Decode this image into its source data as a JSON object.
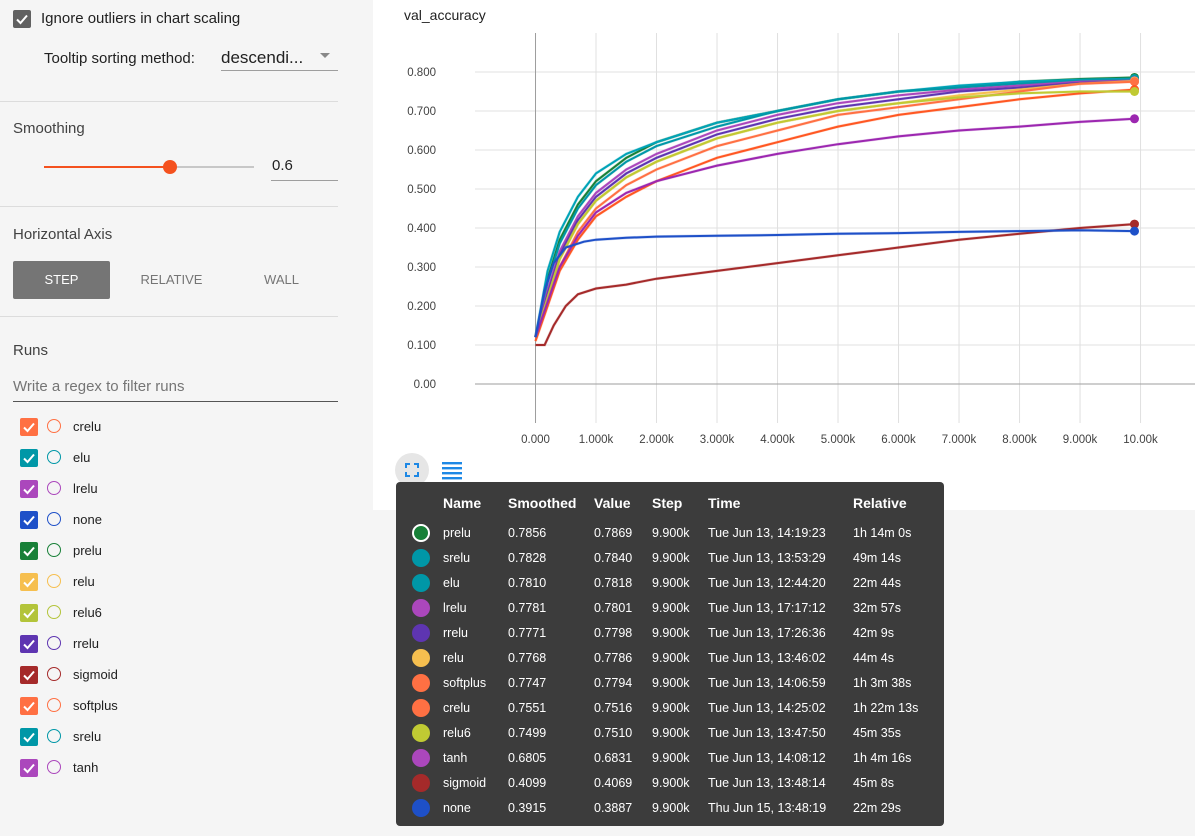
{
  "sidebar": {
    "ignore_outliers_label": "Ignore outliers in chart scaling",
    "tooltip_sort_label": "Tooltip sorting method:",
    "tooltip_sort_value": "descendi...",
    "smoothing_header": "Smoothing",
    "smoothing_value": "0.6",
    "smoothing_fraction": 0.6,
    "horizontal_axis_header": "Horizontal Axis",
    "axis_buttons": [
      "STEP",
      "RELATIVE",
      "WALL"
    ],
    "axis_selected": "STEP",
    "runs_header": "Runs",
    "runs_filter_placeholder": "Write a regex to filter runs",
    "runs": [
      {
        "name": "crelu",
        "color": "#ff7043"
      },
      {
        "name": "elu",
        "color": "#0097a7"
      },
      {
        "name": "lrelu",
        "color": "#ab47bc"
      },
      {
        "name": "none",
        "color": "#1e50c8"
      },
      {
        "name": "prelu",
        "color": "#188038"
      },
      {
        "name": "relu",
        "color": "#f6bf4f"
      },
      {
        "name": "relu6",
        "color": "#b3c43a"
      },
      {
        "name": "rrelu",
        "color": "#5e35b1"
      },
      {
        "name": "sigmoid",
        "color": "#a52a2a"
      },
      {
        "name": "softplus",
        "color": "#ff7043"
      },
      {
        "name": "srelu",
        "color": "#0097a7"
      },
      {
        "name": "tanh",
        "color": "#ab47bc"
      }
    ]
  },
  "chart_data": {
    "type": "line",
    "title": "val_accuracy",
    "xlabel": "",
    "ylabel": "",
    "xlim": [
      -1000,
      10900
    ],
    "ylim": [
      -0.1,
      0.9
    ],
    "x_ticks": [
      0,
      1000,
      2000,
      3000,
      4000,
      5000,
      6000,
      7000,
      8000,
      9000,
      10000
    ],
    "x_tick_labels": [
      "0.000",
      "1.000k",
      "2.000k",
      "3.000k",
      "4.000k",
      "5.000k",
      "6.000k",
      "7.000k",
      "8.000k",
      "9.000k",
      "10.00k"
    ],
    "y_ticks": [
      0,
      0.1,
      0.2,
      0.3,
      0.4,
      0.5,
      0.6,
      0.7,
      0.8
    ],
    "y_tick_labels": [
      "0.00",
      "0.100",
      "0.200",
      "0.300",
      "0.400",
      "0.500",
      "0.600",
      "0.700",
      "0.800"
    ],
    "grid": true,
    "series": [
      {
        "color": "#188038",
        "x": [
          0,
          200,
          400,
          700,
          1000,
          1500,
          2000,
          3000,
          4000,
          5000,
          6000,
          7000,
          8000,
          9000,
          9900
        ],
        "values": [
          0.12,
          0.27,
          0.37,
          0.46,
          0.52,
          0.58,
          0.62,
          0.67,
          0.7,
          0.73,
          0.75,
          0.76,
          0.775,
          0.782,
          0.786
        ]
      },
      {
        "color": "#00a3b7",
        "x": [
          0,
          200,
          400,
          700,
          1000,
          1500,
          2000,
          3000,
          4000,
          5000,
          6000,
          7000,
          8000,
          9000,
          9900
        ],
        "values": [
          0.12,
          0.29,
          0.39,
          0.48,
          0.54,
          0.59,
          0.62,
          0.67,
          0.7,
          0.73,
          0.75,
          0.765,
          0.775,
          0.78,
          0.783
        ]
      },
      {
        "color": "#0097a7",
        "x": [
          0,
          200,
          400,
          700,
          1000,
          1500,
          2000,
          3000,
          4000,
          5000,
          6000,
          7000,
          8000,
          9000,
          9900
        ],
        "values": [
          0.12,
          0.26,
          0.36,
          0.45,
          0.51,
          0.57,
          0.61,
          0.66,
          0.7,
          0.73,
          0.75,
          0.76,
          0.77,
          0.778,
          0.781
        ]
      },
      {
        "color": "#ab47bc",
        "x": [
          0,
          200,
          400,
          700,
          1000,
          1500,
          2000,
          3000,
          4000,
          5000,
          6000,
          7000,
          8000,
          9000,
          9900
        ],
        "values": [
          0.12,
          0.24,
          0.34,
          0.43,
          0.49,
          0.55,
          0.59,
          0.65,
          0.69,
          0.72,
          0.74,
          0.755,
          0.765,
          0.775,
          0.778
        ]
      },
      {
        "color": "#5e35b1",
        "x": [
          0,
          200,
          400,
          700,
          1000,
          1500,
          2000,
          3000,
          4000,
          5000,
          6000,
          7000,
          8000,
          9000,
          9900
        ],
        "values": [
          0.12,
          0.23,
          0.33,
          0.42,
          0.48,
          0.54,
          0.58,
          0.64,
          0.68,
          0.71,
          0.73,
          0.75,
          0.76,
          0.772,
          0.777
        ]
      },
      {
        "color": "#f6bf4f",
        "x": [
          0,
          200,
          400,
          700,
          1000,
          1500,
          2000,
          3000,
          4000,
          5000,
          6000,
          7000,
          8000,
          9000,
          9900
        ],
        "values": [
          0.12,
          0.22,
          0.32,
          0.41,
          0.47,
          0.53,
          0.57,
          0.63,
          0.67,
          0.7,
          0.72,
          0.74,
          0.755,
          0.77,
          0.777
        ]
      },
      {
        "color": "#ff7043",
        "x": [
          0,
          200,
          400,
          700,
          1000,
          1500,
          2000,
          3000,
          4000,
          5000,
          6000,
          7000,
          8000,
          9000,
          9900
        ],
        "values": [
          0.12,
          0.21,
          0.3,
          0.39,
          0.45,
          0.51,
          0.55,
          0.61,
          0.65,
          0.69,
          0.71,
          0.73,
          0.75,
          0.77,
          0.775
        ]
      },
      {
        "color": "#ff5722",
        "x": [
          0,
          200,
          400,
          700,
          1000,
          1500,
          2000,
          2500,
          3000,
          4000,
          5000,
          6000,
          7000,
          8000,
          9000,
          9900
        ],
        "values": [
          0.11,
          0.2,
          0.29,
          0.37,
          0.43,
          0.48,
          0.52,
          0.55,
          0.58,
          0.62,
          0.66,
          0.69,
          0.71,
          0.73,
          0.745,
          0.755
        ]
      },
      {
        "color": "#c0ca33",
        "x": [
          0,
          200,
          400,
          700,
          1000,
          1500,
          2000,
          3000,
          4000,
          5000,
          6000,
          7000,
          8000,
          9000,
          9900
        ],
        "values": [
          0.12,
          0.22,
          0.32,
          0.41,
          0.47,
          0.53,
          0.57,
          0.63,
          0.67,
          0.7,
          0.72,
          0.735,
          0.745,
          0.75,
          0.75
        ]
      },
      {
        "color": "#9c27b0",
        "x": [
          0,
          200,
          400,
          700,
          1000,
          1500,
          2000,
          3000,
          4000,
          5000,
          6000,
          7000,
          8000,
          9000,
          9900
        ],
        "values": [
          0.12,
          0.21,
          0.3,
          0.38,
          0.44,
          0.49,
          0.52,
          0.56,
          0.59,
          0.615,
          0.635,
          0.65,
          0.66,
          0.672,
          0.68
        ]
      },
      {
        "color": "#a52a2a",
        "x": [
          0,
          150,
          300,
          500,
          700,
          1000,
          1500,
          2000,
          3000,
          4000,
          5000,
          6000,
          7000,
          8000,
          9000,
          9900
        ],
        "values": [
          0.1,
          0.1,
          0.15,
          0.2,
          0.23,
          0.245,
          0.255,
          0.27,
          0.29,
          0.31,
          0.33,
          0.35,
          0.37,
          0.385,
          0.4,
          0.41
        ]
      },
      {
        "color": "#1e50c8",
        "x": [
          0,
          150,
          300,
          500,
          800,
          1000,
          1500,
          2000,
          3000,
          4000,
          5000,
          6000,
          7000,
          8000,
          9000,
          9900
        ],
        "values": [
          0.12,
          0.24,
          0.31,
          0.35,
          0.365,
          0.37,
          0.375,
          0.378,
          0.38,
          0.382,
          0.385,
          0.387,
          0.39,
          0.392,
          0.394,
          0.392
        ]
      }
    ]
  },
  "tooltip": {
    "headers": [
      "Name",
      "Smoothed",
      "Value",
      "Step",
      "Time",
      "Relative"
    ],
    "rows": [
      {
        "name": "prelu",
        "smoothed": "0.7856",
        "value": "0.7869",
        "step": "9.900k",
        "time": "Tue Jun 13, 14:19:23",
        "relative": "1h 14m 0s",
        "color": "#188038",
        "ring": true
      },
      {
        "name": "srelu",
        "smoothed": "0.7828",
        "value": "0.7840",
        "step": "9.900k",
        "time": "Tue Jun 13, 13:53:29",
        "relative": "49m 14s",
        "color": "#0097a7"
      },
      {
        "name": "elu",
        "smoothed": "0.7810",
        "value": "0.7818",
        "step": "9.900k",
        "time": "Tue Jun 13, 12:44:20",
        "relative": "22m 44s",
        "color": "#0097a7"
      },
      {
        "name": "lrelu",
        "smoothed": "0.7781",
        "value": "0.7801",
        "step": "9.900k",
        "time": "Tue Jun 13, 17:17:12",
        "relative": "32m 57s",
        "color": "#ab47bc"
      },
      {
        "name": "rrelu",
        "smoothed": "0.7771",
        "value": "0.7798",
        "step": "9.900k",
        "time": "Tue Jun 13, 17:26:36",
        "relative": "42m 9s",
        "color": "#5e35b1"
      },
      {
        "name": "relu",
        "smoothed": "0.7768",
        "value": "0.7786",
        "step": "9.900k",
        "time": "Tue Jun 13, 13:46:02",
        "relative": "44m 4s",
        "color": "#f6bf4f"
      },
      {
        "name": "softplus",
        "smoothed": "0.7747",
        "value": "0.7794",
        "step": "9.900k",
        "time": "Tue Jun 13, 14:06:59",
        "relative": "1h 3m 38s",
        "color": "#ff7043"
      },
      {
        "name": "crelu",
        "smoothed": "0.7551",
        "value": "0.7516",
        "step": "9.900k",
        "time": "Tue Jun 13, 14:25:02",
        "relative": "1h 22m 13s",
        "color": "#ff7043"
      },
      {
        "name": "relu6",
        "smoothed": "0.7499",
        "value": "0.7510",
        "step": "9.900k",
        "time": "Tue Jun 13, 13:47:50",
        "relative": "45m 35s",
        "color": "#c0ca33"
      },
      {
        "name": "tanh",
        "smoothed": "0.6805",
        "value": "0.6831",
        "step": "9.900k",
        "time": "Tue Jun 13, 14:08:12",
        "relative": "1h 4m 16s",
        "color": "#ab47bc"
      },
      {
        "name": "sigmoid",
        "smoothed": "0.4099",
        "value": "0.4069",
        "step": "9.900k",
        "time": "Tue Jun 13, 13:48:14",
        "relative": "45m 8s",
        "color": "#a52a2a"
      },
      {
        "name": "none",
        "smoothed": "0.3915",
        "value": "0.3887",
        "step": "9.900k",
        "time": "Thu Jun 15, 13:48:19",
        "relative": "22m 29s",
        "color": "#1e50c8"
      }
    ]
  }
}
